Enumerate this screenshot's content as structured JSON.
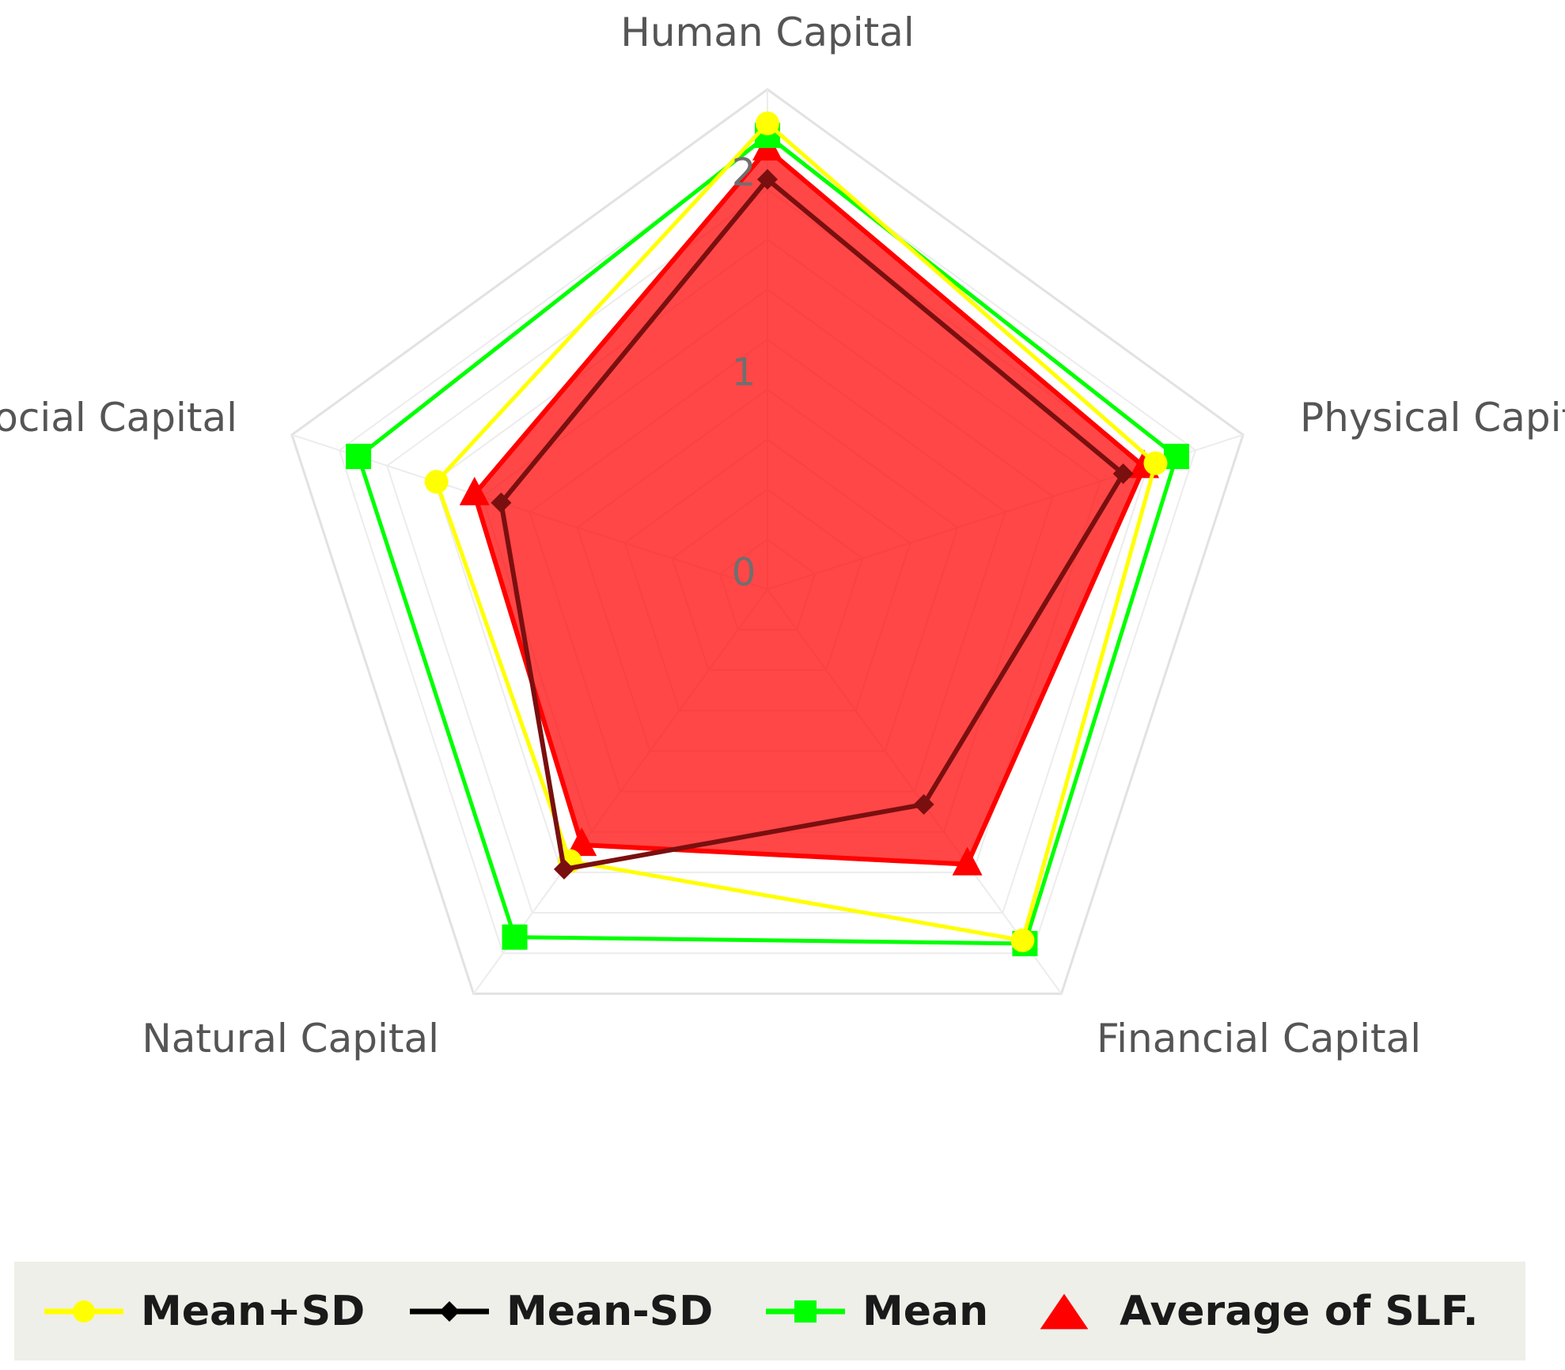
{
  "chart_data": {
    "type": "radar",
    "axes": [
      "Human Capital",
      "Physical Capital",
      "Financial Capital",
      "Natural Capital",
      "Social Capital"
    ],
    "r_ticks": [
      "0",
      "1",
      "2"
    ],
    "r_range": [
      0,
      2.5
    ],
    "grid": true,
    "legend_position": "bottom",
    "series": [
      {
        "name": "Mean+SD",
        "color": "#ffff00",
        "marker": "circle",
        "values": [
          2.33,
          2.04,
          2.17,
          1.68,
          1.74
        ]
      },
      {
        "name": "Mean-SD",
        "color": "#000000",
        "marker": "diamond",
        "values": [
          2.05,
          1.87,
          1.33,
          1.73,
          1.4
        ]
      },
      {
        "name": "Mean",
        "color": "#00ff00",
        "marker": "square",
        "values": [
          2.27,
          2.15,
          2.19,
          2.15,
          2.15
        ]
      },
      {
        "name": "Average of SLF.",
        "color": "#ff0000",
        "marker": "triangle",
        "fill": true,
        "values": [
          2.2,
          1.98,
          1.7,
          1.58,
          1.54
        ]
      }
    ]
  }
}
